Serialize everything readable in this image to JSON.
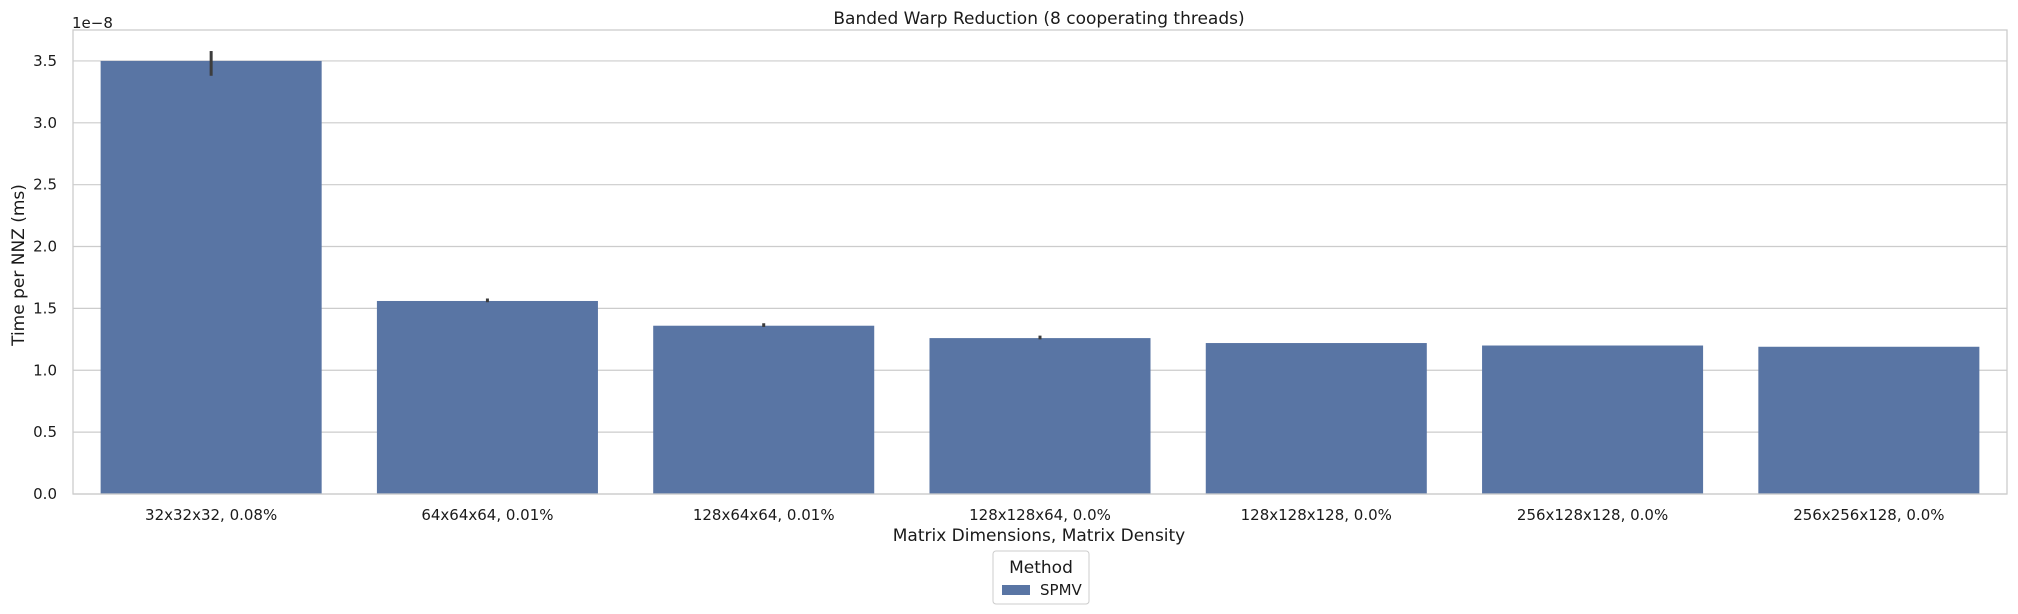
{
  "chart_data": {
    "type": "bar",
    "title": "Banded Warp Reduction (8 cooperating threads)",
    "xlabel": "Matrix Dimensions, Matrix Density",
    "ylabel": "Time per NNZ (ms)",
    "y_offset_label": "1e−8",
    "categories": [
      "32x32x32, 0.08%",
      "64x64x64, 0.01%",
      "128x64x64, 0.01%",
      "128x128x64, 0.0%",
      "128x128x128, 0.0%",
      "256x128x128, 0.0%",
      "256x256x128, 0.0%"
    ],
    "series": [
      {
        "name": "SPMV",
        "color": "#5975a4",
        "values": [
          3.5,
          1.56,
          1.36,
          1.26,
          1.22,
          1.2,
          1.19
        ],
        "error_low": [
          3.38,
          1.55,
          1.35,
          1.25,
          1.22,
          1.2,
          1.19
        ],
        "error_high": [
          3.58,
          1.58,
          1.38,
          1.28,
          1.22,
          1.2,
          1.19
        ]
      }
    ],
    "yticks": [
      "0.0",
      "0.5",
      "1.0",
      "1.5",
      "2.0",
      "2.5",
      "3.0",
      "3.5"
    ],
    "ylim": [
      0,
      3.75
    ],
    "grid": true,
    "legend": {
      "title": "Method",
      "placement": "bottom-center"
    }
  }
}
